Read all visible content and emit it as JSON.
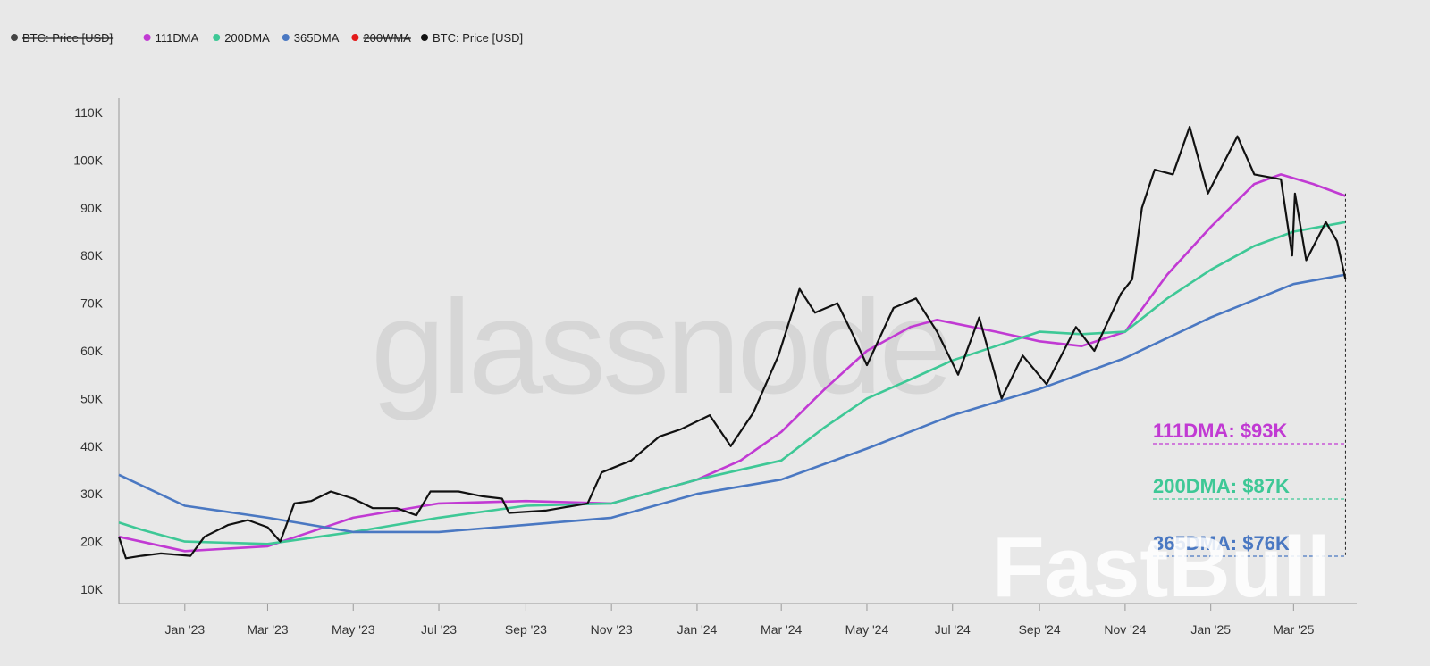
{
  "chart_data": {
    "type": "line",
    "legend": {
      "placement": "top-left",
      "items": [
        {
          "label": "BTC: Price [USD]",
          "color": "#444444",
          "hidden": true
        },
        {
          "label": "111DMA",
          "color": "#c13ad3",
          "hidden": false
        },
        {
          "label": "200DMA",
          "color": "#3ec896",
          "hidden": false
        },
        {
          "label": "365DMA",
          "color": "#4a78c2",
          "hidden": false
        },
        {
          "label": "200WMA",
          "color": "#e31a1a",
          "hidden": true
        },
        {
          "label": "BTC: Price [USD]",
          "color": "#111111",
          "hidden": false
        }
      ]
    },
    "x_ticks": [
      "Jan '23",
      "Mar '23",
      "May '23",
      "Jul '23",
      "Sep '23",
      "Nov '23",
      "Jan '24",
      "Mar '24",
      "May '24",
      "Jul '24",
      "Sep '24",
      "Nov '24",
      "Jan '25",
      "Mar '25"
    ],
    "y_ticks": [
      "10K",
      "20K",
      "30K",
      "40K",
      "50K",
      "60K",
      "70K",
      "80K",
      "90K",
      "100K",
      "110K"
    ],
    "xlim": [
      "2022-11-15",
      "2025-04-15"
    ],
    "ylim": [
      7000,
      113000
    ],
    "grid": false,
    "series": [
      {
        "name": "111DMA",
        "color": "#c13ad3",
        "points": [
          [
            "2022-11-15",
            21000
          ],
          [
            "2023-01-01",
            18000
          ],
          [
            "2023-03-01",
            19000
          ],
          [
            "2023-05-01",
            25000
          ],
          [
            "2023-07-01",
            28000
          ],
          [
            "2023-09-01",
            28500
          ],
          [
            "2023-11-01",
            28000
          ],
          [
            "2024-01-01",
            33000
          ],
          [
            "2024-02-01",
            37000
          ],
          [
            "2024-03-01",
            43000
          ],
          [
            "2024-04-01",
            52000
          ],
          [
            "2024-05-01",
            60000
          ],
          [
            "2024-06-01",
            65000
          ],
          [
            "2024-06-20",
            66500
          ],
          [
            "2024-08-01",
            64000
          ],
          [
            "2024-09-01",
            62000
          ],
          [
            "2024-10-01",
            61000
          ],
          [
            "2024-11-01",
            64000
          ],
          [
            "2024-12-01",
            76000
          ],
          [
            "2025-01-01",
            86000
          ],
          [
            "2025-02-01",
            95000
          ],
          [
            "2025-02-20",
            97000
          ],
          [
            "2025-03-15",
            95000
          ],
          [
            "2025-04-07",
            92500
          ]
        ]
      },
      {
        "name": "200DMA",
        "color": "#3ec896",
        "points": [
          [
            "2022-11-15",
            24000
          ],
          [
            "2022-12-01",
            22500
          ],
          [
            "2023-01-01",
            20000
          ],
          [
            "2023-03-01",
            19500
          ],
          [
            "2023-05-01",
            22000
          ],
          [
            "2023-07-01",
            25000
          ],
          [
            "2023-09-01",
            27500
          ],
          [
            "2023-11-01",
            28000
          ],
          [
            "2024-01-01",
            33000
          ],
          [
            "2024-03-01",
            37000
          ],
          [
            "2024-04-01",
            44000
          ],
          [
            "2024-05-01",
            50000
          ],
          [
            "2024-06-01",
            54000
          ],
          [
            "2024-07-01",
            58000
          ],
          [
            "2024-08-01",
            61000
          ],
          [
            "2024-09-01",
            64000
          ],
          [
            "2024-10-01",
            63500
          ],
          [
            "2024-11-01",
            64000
          ],
          [
            "2024-12-01",
            71000
          ],
          [
            "2025-01-01",
            77000
          ],
          [
            "2025-02-01",
            82000
          ],
          [
            "2025-03-01",
            85000
          ],
          [
            "2025-04-07",
            87000
          ]
        ]
      },
      {
        "name": "365DMA",
        "color": "#4a78c2",
        "points": [
          [
            "2022-11-15",
            34000
          ],
          [
            "2023-01-01",
            27500
          ],
          [
            "2023-03-01",
            25000
          ],
          [
            "2023-05-01",
            22000
          ],
          [
            "2023-07-01",
            22000
          ],
          [
            "2023-09-01",
            23500
          ],
          [
            "2023-11-01",
            25000
          ],
          [
            "2024-01-01",
            30000
          ],
          [
            "2024-03-01",
            33000
          ],
          [
            "2024-05-01",
            39500
          ],
          [
            "2024-07-01",
            46500
          ],
          [
            "2024-09-01",
            52000
          ],
          [
            "2024-11-01",
            58500
          ],
          [
            "2025-01-01",
            67000
          ],
          [
            "2025-03-01",
            74000
          ],
          [
            "2025-04-07",
            76000
          ]
        ]
      },
      {
        "name": "BTC: Price [USD]",
        "color": "#111111",
        "points": [
          [
            "2022-11-15",
            21000
          ],
          [
            "2022-11-20",
            16500
          ],
          [
            "2022-12-01",
            17000
          ],
          [
            "2022-12-15",
            17500
          ],
          [
            "2023-01-05",
            17000
          ],
          [
            "2023-01-15",
            21000
          ],
          [
            "2023-02-01",
            23500
          ],
          [
            "2023-02-15",
            24500
          ],
          [
            "2023-03-01",
            23000
          ],
          [
            "2023-03-10",
            20000
          ],
          [
            "2023-03-20",
            28000
          ],
          [
            "2023-04-01",
            28500
          ],
          [
            "2023-04-15",
            30500
          ],
          [
            "2023-05-01",
            29000
          ],
          [
            "2023-05-15",
            27000
          ],
          [
            "2023-06-01",
            27000
          ],
          [
            "2023-06-15",
            25500
          ],
          [
            "2023-06-25",
            30500
          ],
          [
            "2023-07-15",
            30500
          ],
          [
            "2023-08-01",
            29500
          ],
          [
            "2023-08-15",
            29000
          ],
          [
            "2023-08-20",
            26000
          ],
          [
            "2023-09-15",
            26500
          ],
          [
            "2023-10-15",
            28000
          ],
          [
            "2023-10-25",
            34500
          ],
          [
            "2023-11-15",
            37000
          ],
          [
            "2023-12-05",
            42000
          ],
          [
            "2023-12-20",
            43500
          ],
          [
            "2024-01-10",
            46500
          ],
          [
            "2024-01-25",
            40000
          ],
          [
            "2024-02-10",
            47000
          ],
          [
            "2024-02-28",
            59000
          ],
          [
            "2024-03-14",
            73000
          ],
          [
            "2024-03-25",
            68000
          ],
          [
            "2024-04-10",
            70000
          ],
          [
            "2024-04-20",
            64000
          ],
          [
            "2024-05-01",
            57000
          ],
          [
            "2024-05-20",
            69000
          ],
          [
            "2024-06-05",
            71000
          ],
          [
            "2024-06-20",
            64000
          ],
          [
            "2024-07-05",
            55000
          ],
          [
            "2024-07-20",
            67000
          ],
          [
            "2024-08-05",
            50000
          ],
          [
            "2024-08-20",
            59000
          ],
          [
            "2024-09-06",
            53000
          ],
          [
            "2024-09-27",
            65000
          ],
          [
            "2024-10-10",
            60000
          ],
          [
            "2024-10-29",
            72000
          ],
          [
            "2024-11-06",
            75000
          ],
          [
            "2024-11-13",
            90000
          ],
          [
            "2024-11-22",
            98000
          ],
          [
            "2024-12-05",
            97000
          ],
          [
            "2024-12-17",
            107000
          ],
          [
            "2024-12-30",
            93000
          ],
          [
            "2025-01-20",
            105000
          ],
          [
            "2025-02-01",
            97000
          ],
          [
            "2025-02-20",
            96000
          ],
          [
            "2025-02-28",
            80000
          ],
          [
            "2025-03-02",
            93000
          ],
          [
            "2025-03-10",
            79000
          ],
          [
            "2025-03-24",
            87000
          ],
          [
            "2025-04-01",
            83000
          ],
          [
            "2025-04-07",
            75000
          ]
        ]
      }
    ],
    "annotations": [
      {
        "label": "111DMA: $93K",
        "color": "#c13ad3",
        "value": 93000
      },
      {
        "label": "200DMA: $87K",
        "color": "#3ec896",
        "value": 87000
      },
      {
        "label": "365DMA: $76K",
        "color": "#4a78c2",
        "value": 76000
      }
    ],
    "watermarks": [
      "glassnode",
      "FastBull"
    ]
  }
}
